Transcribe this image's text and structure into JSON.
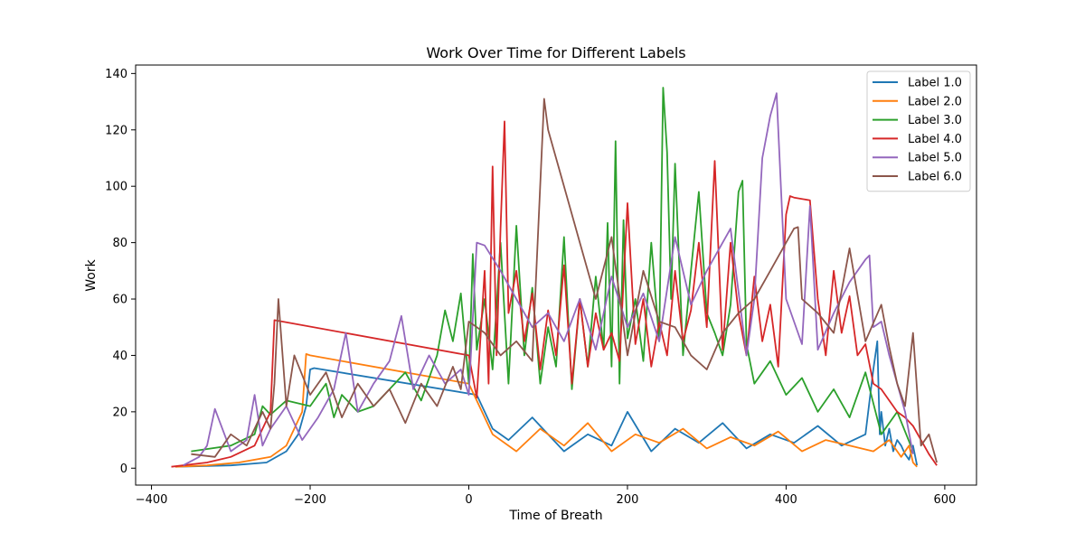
{
  "chart_data": {
    "type": "line",
    "title": "Work Over Time for Different Labels",
    "xlabel": "Time of Breath",
    "ylabel": "Work",
    "xlim": [
      -420,
      640
    ],
    "ylim": [
      -6,
      143
    ],
    "xticks": [
      -400,
      -200,
      0,
      200,
      400,
      600
    ],
    "xtick_labels": [
      "−400",
      "−200",
      "0",
      "200",
      "400",
      "600"
    ],
    "yticks": [
      0,
      20,
      40,
      60,
      80,
      100,
      120,
      140
    ],
    "ytick_labels": [
      "0",
      "20",
      "40",
      "60",
      "80",
      "100",
      "120",
      "140"
    ],
    "grid": false,
    "legend_position": "top-right",
    "series": [
      {
        "name": "Label 1.0",
        "color": "#1f77b4",
        "x": [
          -370,
          -300,
          -255,
          -230,
          -215,
          -205,
          -200,
          -195,
          10,
          30,
          50,
          80,
          120,
          150,
          180,
          200,
          230,
          260,
          290,
          320,
          350,
          380,
          410,
          440,
          470,
          500,
          510,
          515,
          518,
          520,
          525,
          530,
          535,
          540,
          545,
          550,
          555,
          560,
          565
        ],
        "y": [
          0.5,
          1,
          2,
          6,
          12,
          22,
          35,
          35.5,
          26,
          14,
          10,
          18,
          6,
          12,
          8,
          20,
          6,
          14,
          9,
          16,
          7,
          12,
          9,
          15,
          8,
          12,
          35,
          45,
          12,
          20,
          8,
          14,
          6,
          10,
          8,
          5,
          3,
          8,
          1
        ]
      },
      {
        "name": "Label 2.0",
        "color": "#ff7f0e",
        "x": [
          -370,
          -330,
          -290,
          -250,
          -230,
          -210,
          -205,
          -200,
          0,
          30,
          60,
          90,
          120,
          150,
          180,
          210,
          240,
          270,
          300,
          330,
          360,
          390,
          420,
          450,
          480,
          510,
          530,
          545,
          555,
          560,
          565
        ],
        "y": [
          0.5,
          1,
          2,
          4,
          8,
          20,
          40.5,
          40,
          30,
          12,
          6,
          14,
          8,
          16,
          6,
          12,
          9,
          14,
          7,
          11,
          8,
          13,
          6,
          10,
          8,
          6,
          10,
          4,
          8,
          2,
          0.5
        ]
      },
      {
        "name": "Label 3.0",
        "color": "#2ca02c",
        "x": [
          -350,
          -300,
          -270,
          -260,
          -250,
          -230,
          -200,
          -180,
          -170,
          -160,
          -140,
          -120,
          -100,
          -80,
          -60,
          -40,
          -30,
          -20,
          -10,
          0,
          5,
          10,
          20,
          30,
          40,
          50,
          60,
          70,
          80,
          90,
          100,
          110,
          120,
          130,
          140,
          150,
          160,
          170,
          175,
          180,
          185,
          190,
          195,
          200,
          210,
          220,
          230,
          240,
          245,
          250,
          255,
          260,
          270,
          280,
          290,
          300,
          310,
          320,
          330,
          340,
          345,
          350,
          360,
          380,
          400,
          420,
          440,
          460,
          480,
          500,
          520,
          540,
          560
        ],
        "y": [
          6,
          8,
          12,
          22,
          19,
          24,
          22,
          30,
          18,
          26,
          20,
          22,
          28,
          34,
          24,
          40,
          56,
          45,
          62,
          30,
          76,
          42,
          60,
          35,
          80,
          30,
          86,
          40,
          64,
          30,
          50,
          36,
          82,
          28,
          60,
          36,
          68,
          42,
          87,
          36,
          116,
          30,
          88,
          46,
          60,
          38,
          80,
          45,
          135,
          112,
          60,
          108,
          40,
          70,
          98,
          55,
          48,
          40,
          58,
          98,
          102,
          44,
          30,
          38,
          26,
          32,
          20,
          28,
          18,
          34,
          12,
          20,
          6
        ]
      },
      {
        "name": "Label 4.0",
        "color": "#d62728",
        "x": [
          -375,
          -330,
          -300,
          -270,
          -250,
          -245,
          0,
          10,
          20,
          25,
          30,
          35,
          40,
          45,
          50,
          60,
          70,
          80,
          90,
          100,
          110,
          120,
          130,
          140,
          150,
          160,
          170,
          180,
          190,
          200,
          210,
          220,
          230,
          240,
          250,
          260,
          270,
          280,
          290,
          300,
          310,
          320,
          330,
          340,
          350,
          360,
          370,
          380,
          390,
          400,
          405,
          410,
          420,
          430,
          440,
          450,
          460,
          470,
          480,
          490,
          500,
          510,
          520,
          530,
          540,
          550,
          560,
          570,
          580,
          590
        ],
        "y": [
          0.5,
          2,
          4,
          8,
          20,
          52.5,
          40,
          25,
          70,
          30,
          107,
          40,
          85,
          123,
          55,
          70,
          45,
          62,
          35,
          56,
          40,
          72,
          30,
          60,
          36,
          55,
          42,
          48,
          38,
          94,
          44,
          60,
          36,
          52,
          40,
          70,
          45,
          56,
          80,
          50,
          109,
          42,
          80,
          55,
          40,
          68,
          45,
          58,
          36,
          90,
          96.5,
          96,
          95.5,
          95,
          60,
          40,
          70,
          48,
          61,
          40,
          44,
          30,
          28,
          24,
          20,
          18,
          15,
          10,
          5,
          1
        ]
      },
      {
        "name": "Label 5.0",
        "color": "#9467bd",
        "x": [
          -360,
          -340,
          -330,
          -320,
          -300,
          -280,
          -270,
          -260,
          -250,
          -230,
          -210,
          -190,
          -170,
          -155,
          -140,
          -120,
          -100,
          -85,
          -70,
          -50,
          -30,
          -10,
          0,
          10,
          20,
          40,
          60,
          80,
          100,
          120,
          140,
          160,
          180,
          200,
          220,
          240,
          260,
          280,
          300,
          330,
          350,
          360,
          370,
          380,
          388,
          400,
          420,
          430,
          440,
          460,
          480,
          500,
          505,
          510,
          520,
          530,
          540,
          550,
          560
        ],
        "y": [
          1,
          4,
          8,
          21,
          6,
          10,
          26,
          8,
          14,
          22,
          10,
          18,
          28,
          48,
          20,
          30,
          38,
          54,
          28,
          40,
          30,
          35,
          26,
          80,
          79,
          70,
          60,
          50,
          55,
          45,
          60,
          42,
          68,
          50,
          62,
          45,
          82,
          58,
          70,
          85,
          40,
          60,
          110,
          125,
          133,
          60,
          44,
          93,
          42,
          55,
          66,
          74,
          75.5,
          50,
          52,
          40,
          30,
          20,
          5
        ]
      },
      {
        "name": "Label 6.0",
        "color": "#8c564b",
        "x": [
          -350,
          -320,
          -300,
          -280,
          -260,
          -250,
          -245,
          -240,
          -230,
          -220,
          -200,
          -180,
          -160,
          -140,
          -120,
          -100,
          -80,
          -60,
          -40,
          -20,
          -10,
          0,
          10,
          20,
          40,
          60,
          80,
          95,
          100,
          120,
          140,
          160,
          180,
          200,
          220,
          240,
          260,
          280,
          300,
          320,
          340,
          360,
          380,
          400,
          410,
          415,
          420,
          440,
          460,
          480,
          500,
          520,
          530,
          540,
          550,
          560,
          570,
          580,
          590
        ],
        "y": [
          5,
          4,
          12,
          8,
          20,
          14,
          30,
          60,
          22,
          40,
          26,
          34,
          18,
          30,
          22,
          28,
          16,
          30,
          22,
          36,
          28,
          52,
          50,
          48,
          40,
          45,
          38,
          131,
          120,
          100,
          80,
          60,
          82,
          40,
          70,
          52,
          50,
          40,
          35,
          48,
          55,
          60,
          70,
          80,
          85,
          85.5,
          60,
          55,
          48,
          78,
          45,
          58,
          43,
          30,
          22,
          48,
          8,
          12,
          2
        ]
      }
    ]
  }
}
